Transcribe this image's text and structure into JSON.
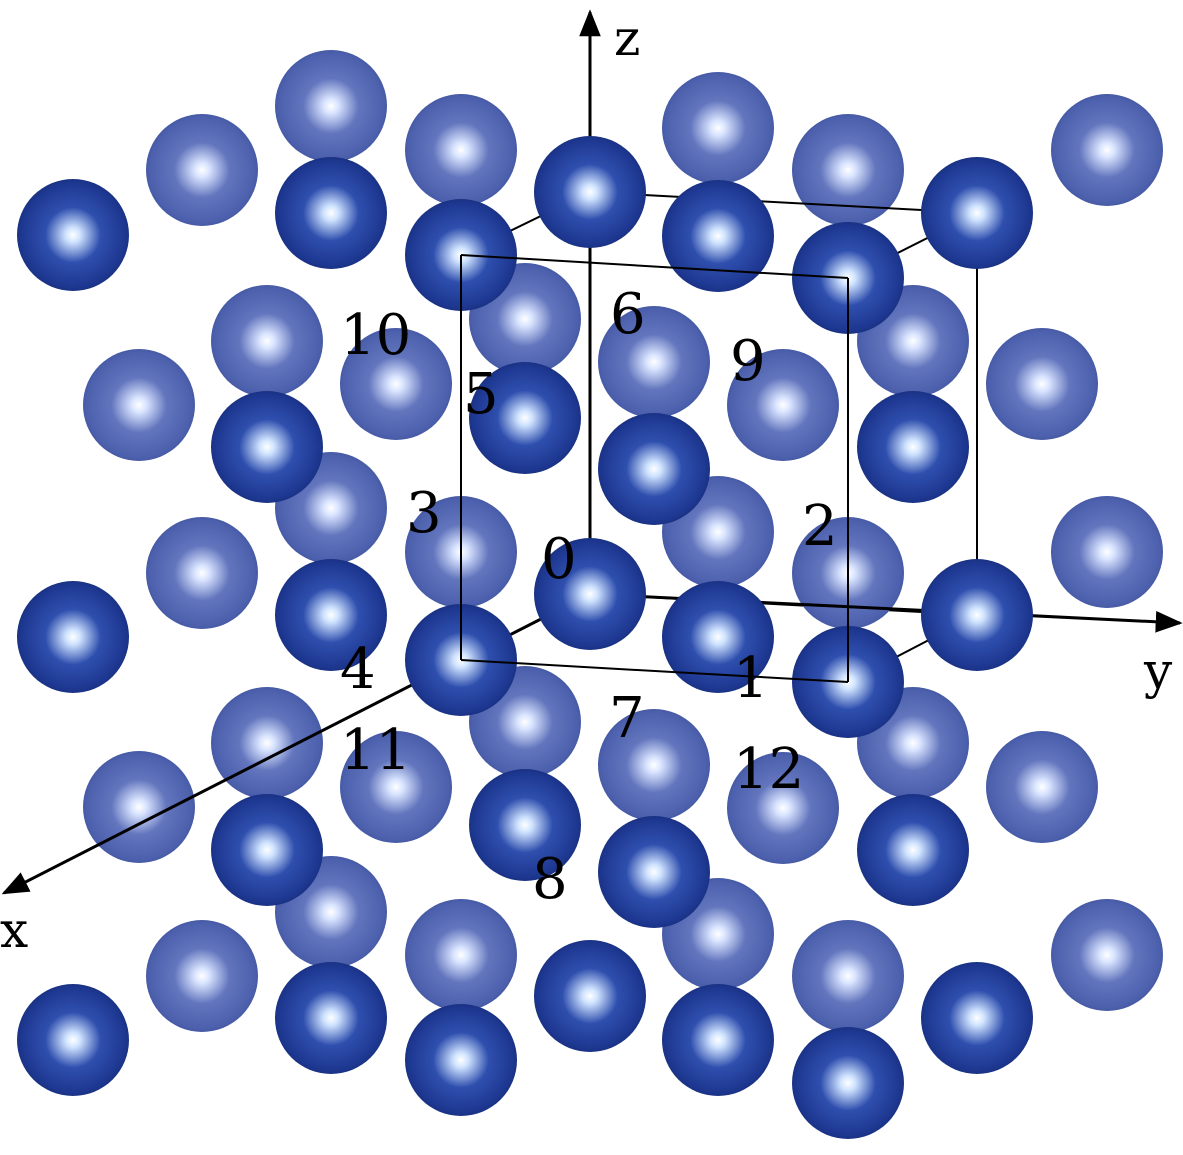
{
  "axes": {
    "x_label": "x",
    "y_label": "y",
    "z_label": "z"
  },
  "site_labels": [
    "0",
    "1",
    "2",
    "3",
    "4",
    "5",
    "6",
    "7",
    "8",
    "9",
    "10",
    "11",
    "12"
  ],
  "colors": {
    "front_atom": "#1f3b97",
    "back_atom": "#5569b3",
    "line": "#000000",
    "background": "#ffffff"
  }
}
